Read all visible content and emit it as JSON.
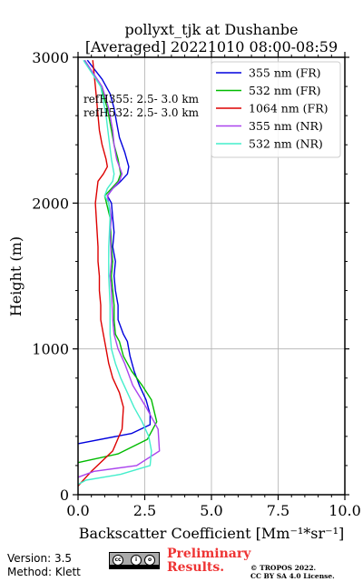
{
  "chart_data": {
    "type": "line",
    "title": [
      "pollyxt_tjk at Dushanbe",
      "[Averaged] 20221010 08:00-08:59"
    ],
    "xlabel": "Backscatter Coefficient [Mm⁻¹*sr⁻¹]",
    "ylabel": "Height (m)",
    "xlim": [
      0,
      10
    ],
    "ylim": [
      0,
      3000
    ],
    "xticks": [
      0,
      2.5,
      5,
      7.5,
      10
    ],
    "xtick_labels": [
      "0.0",
      "2.5",
      "5.0",
      "7.5",
      "10.0"
    ],
    "yticks": [
      0,
      1000,
      2000,
      3000
    ],
    "ytick_labels": [
      "0",
      "1000",
      "2000",
      "3000"
    ],
    "grid": true,
    "legend_position": "top-right",
    "annotations": [
      "refH355:  2.5- 3.0 km",
      "refH532:  2.5- 3.0 km"
    ],
    "series": [
      {
        "name": "355 nm (FR)",
        "color": "#0000dd",
        "x": [
          0.0,
          2.0,
          2.7,
          2.7,
          2.55,
          2.3,
          2.1,
          1.95,
          1.85,
          1.7,
          1.5,
          1.5,
          1.4,
          1.35,
          1.4,
          1.3,
          1.35,
          1.3,
          1.25,
          1.1,
          1.3,
          1.6,
          1.85,
          1.9,
          1.75,
          1.55,
          1.45,
          1.35,
          1.2,
          0.9,
          0.35
        ],
        "y": [
          350,
          420,
          480,
          550,
          650,
          750,
          850,
          950,
          1050,
          1100,
          1200,
          1300,
          1400,
          1500,
          1600,
          1700,
          1800,
          1900,
          2000,
          2050,
          2100,
          2150,
          2200,
          2250,
          2350,
          2450,
          2550,
          2650,
          2750,
          2850,
          2980
        ]
      },
      {
        "name": "532 nm (FR)",
        "color": "#00bb00",
        "x": [
          0.0,
          1.5,
          2.6,
          2.95,
          2.75,
          2.4,
          2.0,
          1.7,
          1.55,
          1.4,
          1.35,
          1.35,
          1.3,
          1.25,
          1.3,
          1.25,
          1.2,
          1.0,
          1.25,
          1.5,
          1.6,
          1.5,
          1.35,
          1.25,
          1.1,
          0.85,
          0.25
        ],
        "y": [
          220,
          280,
          380,
          500,
          650,
          750,
          850,
          950,
          1050,
          1100,
          1200,
          1300,
          1400,
          1500,
          1600,
          1700,
          1900,
          2050,
          2100,
          2150,
          2200,
          2300,
          2400,
          2500,
          2650,
          2800,
          2980
        ]
      },
      {
        "name": "1064 nm (FR)",
        "color": "#dd0000",
        "x": [
          0.0,
          0.5,
          1.3,
          1.65,
          1.7,
          1.55,
          1.3,
          1.15,
          1.05,
          0.95,
          0.85,
          0.85,
          0.8,
          0.8,
          0.75,
          0.75,
          0.65,
          0.75,
          0.95,
          1.1,
          1.05,
          0.9,
          0.8,
          0.75,
          0.7,
          0.65,
          0.55
        ],
        "y": [
          60,
          160,
          300,
          450,
          600,
          700,
          800,
          900,
          1000,
          1100,
          1200,
          1300,
          1400,
          1500,
          1600,
          1700,
          2000,
          2150,
          2200,
          2250,
          2300,
          2400,
          2500,
          2600,
          2700,
          2800,
          2980
        ]
      },
      {
        "name": "355 nm (NR)",
        "color": "#aa44ee",
        "x": [
          0.0,
          0.6,
          2.2,
          3.05,
          3.0,
          2.55,
          2.05,
          1.75,
          1.5,
          1.35,
          1.3,
          1.25,
          1.2,
          1.25,
          1.2,
          1.25,
          1.1,
          1.3,
          1.55,
          1.65,
          1.45,
          1.35,
          1.3,
          1.15,
          0.9,
          0.25
        ],
        "y": [
          120,
          160,
          200,
          300,
          450,
          600,
          750,
          900,
          1000,
          1100,
          1200,
          1400,
          1500,
          1600,
          1800,
          1900,
          2050,
          2100,
          2150,
          2200,
          2300,
          2400,
          2500,
          2650,
          2800,
          2980
        ]
      },
      {
        "name": "532 nm (NR)",
        "color": "#44eecc",
        "x": [
          0.0,
          0.3,
          1.6,
          2.7,
          2.75,
          2.65,
          2.4,
          2.1,
          1.85,
          1.6,
          1.4,
          1.25,
          1.2,
          1.2,
          1.15,
          1.15,
          1.2,
          1.15,
          1.0,
          1.1,
          1.3,
          1.35,
          1.25,
          1.15,
          1.05,
          0.85,
          0.2
        ],
        "y": [
          70,
          100,
          140,
          200,
          300,
          400,
          500,
          600,
          700,
          800,
          900,
          1000,
          1100,
          1300,
          1500,
          1700,
          1900,
          2000,
          2050,
          2100,
          2150,
          2200,
          2300,
          2450,
          2600,
          2800,
          2980
        ]
      }
    ]
  },
  "footer": {
    "version": "Version: 3.5",
    "method": "Method: Klett",
    "preliminary": "Preliminary\nResults.",
    "copyright": "© TROPOS 2022.\nCC BY SA 4.0 License.",
    "license_badge": "cc-by-sa"
  }
}
